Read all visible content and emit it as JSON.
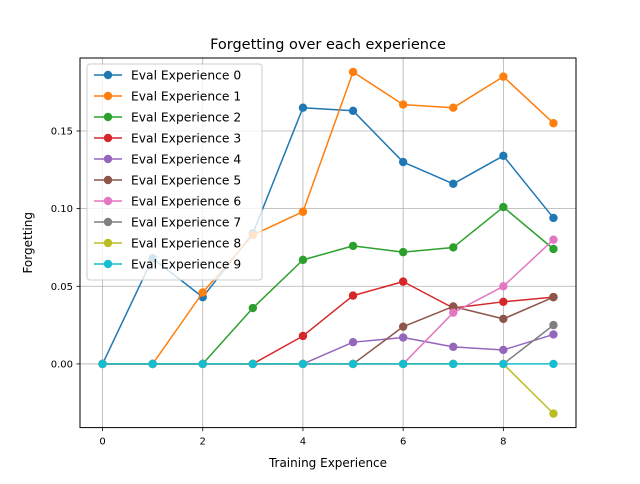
{
  "chart_data": {
    "type": "line",
    "title": "Forgetting over each experience",
    "xlabel": "Training Experience",
    "ylabel": "Forgetting",
    "x": [
      0,
      1,
      2,
      3,
      4,
      5,
      6,
      7,
      8,
      9
    ],
    "xlim": [
      -0.45,
      9.45
    ],
    "ylim": [
      -0.041,
      0.197
    ],
    "x_ticks": [
      0,
      2,
      4,
      6,
      8
    ],
    "x_tick_labels": [
      "0",
      "2",
      "4",
      "6",
      "8"
    ],
    "y_ticks": [
      0.0,
      0.05,
      0.1,
      0.15
    ],
    "y_tick_labels": [
      "0.00",
      "0.05",
      "0.10",
      "0.15"
    ],
    "grid": true,
    "legend_position": "upper-left",
    "series": [
      {
        "name": "Eval Experience 0",
        "color": "#1f77b4",
        "values": [
          0.0,
          0.068,
          0.043,
          0.084,
          0.165,
          0.163,
          0.13,
          0.116,
          0.134,
          0.094
        ]
      },
      {
        "name": "Eval Experience 1",
        "color": "#ff7f0e",
        "values": [
          0.0,
          0.0,
          0.046,
          0.083,
          0.098,
          0.188,
          0.167,
          0.165,
          0.185,
          0.155
        ]
      },
      {
        "name": "Eval Experience 2",
        "color": "#2ca02c",
        "values": [
          0.0,
          0.0,
          0.0,
          0.036,
          0.067,
          0.076,
          0.072,
          0.075,
          0.101,
          0.074
        ]
      },
      {
        "name": "Eval Experience 3",
        "color": "#d62728",
        "values": [
          0.0,
          0.0,
          0.0,
          0.0,
          0.018,
          0.044,
          0.053,
          0.036,
          0.04,
          0.043
        ]
      },
      {
        "name": "Eval Experience 4",
        "color": "#9467bd",
        "values": [
          0.0,
          0.0,
          0.0,
          0.0,
          0.0,
          0.014,
          0.017,
          0.011,
          0.009,
          0.019
        ]
      },
      {
        "name": "Eval Experience 5",
        "color": "#8c564b",
        "values": [
          0.0,
          0.0,
          0.0,
          0.0,
          0.0,
          0.0,
          0.024,
          0.037,
          0.029,
          0.043
        ]
      },
      {
        "name": "Eval Experience 6",
        "color": "#e377c2",
        "values": [
          0.0,
          0.0,
          0.0,
          0.0,
          0.0,
          0.0,
          0.0,
          0.033,
          0.05,
          0.08
        ]
      },
      {
        "name": "Eval Experience 7",
        "color": "#7f7f7f",
        "values": [
          0.0,
          0.0,
          0.0,
          0.0,
          0.0,
          0.0,
          0.0,
          0.0,
          0.0,
          0.025
        ]
      },
      {
        "name": "Eval Experience 8",
        "color": "#bcbd22",
        "values": [
          0.0,
          0.0,
          0.0,
          0.0,
          0.0,
          0.0,
          0.0,
          0.0,
          0.0,
          -0.032
        ]
      },
      {
        "name": "Eval Experience 9",
        "color": "#17becf",
        "values": [
          0.0,
          0.0,
          0.0,
          0.0,
          0.0,
          0.0,
          0.0,
          0.0,
          0.0,
          0.0
        ]
      }
    ]
  }
}
